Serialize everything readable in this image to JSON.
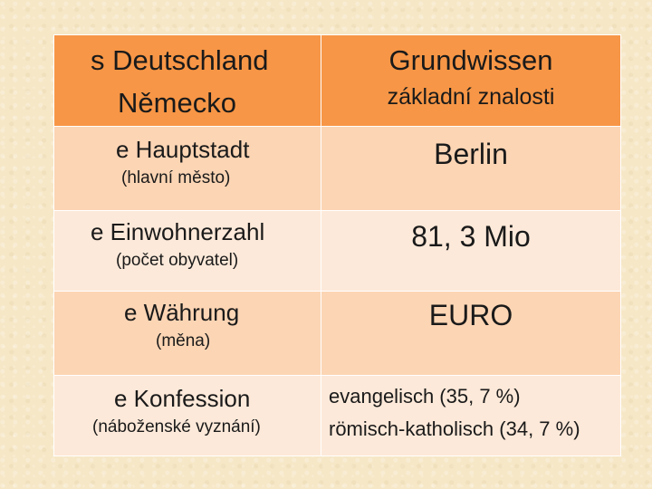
{
  "header": {
    "left_line1": "s Deutschland",
    "left_line2": "Německo",
    "right_line1": "Grundwissen",
    "right_line2": "základní znalosti"
  },
  "rows": [
    {
      "label": "e Hauptstadt",
      "sublabel": "(hlavní město)",
      "value": "Berlin"
    },
    {
      "label": "e Einwohnerzahl",
      "sublabel": "(počet obyvatel)",
      "value": "81, 3 Mio"
    },
    {
      "label": "e Währung",
      "sublabel": "(měna)",
      "value": "EURO"
    },
    {
      "label": "e Konfession",
      "sublabel": "(náboženské vyznání)",
      "value_line1": "evangelisch (35, 7 %)",
      "value_line2": "römisch-katholisch (34, 7 %)"
    }
  ],
  "colors": {
    "header_bg": "#f79646",
    "row_dark_bg": "#fcd5b4",
    "row_light_bg": "#fde9d9",
    "page_bg": "#f6e7c6"
  }
}
